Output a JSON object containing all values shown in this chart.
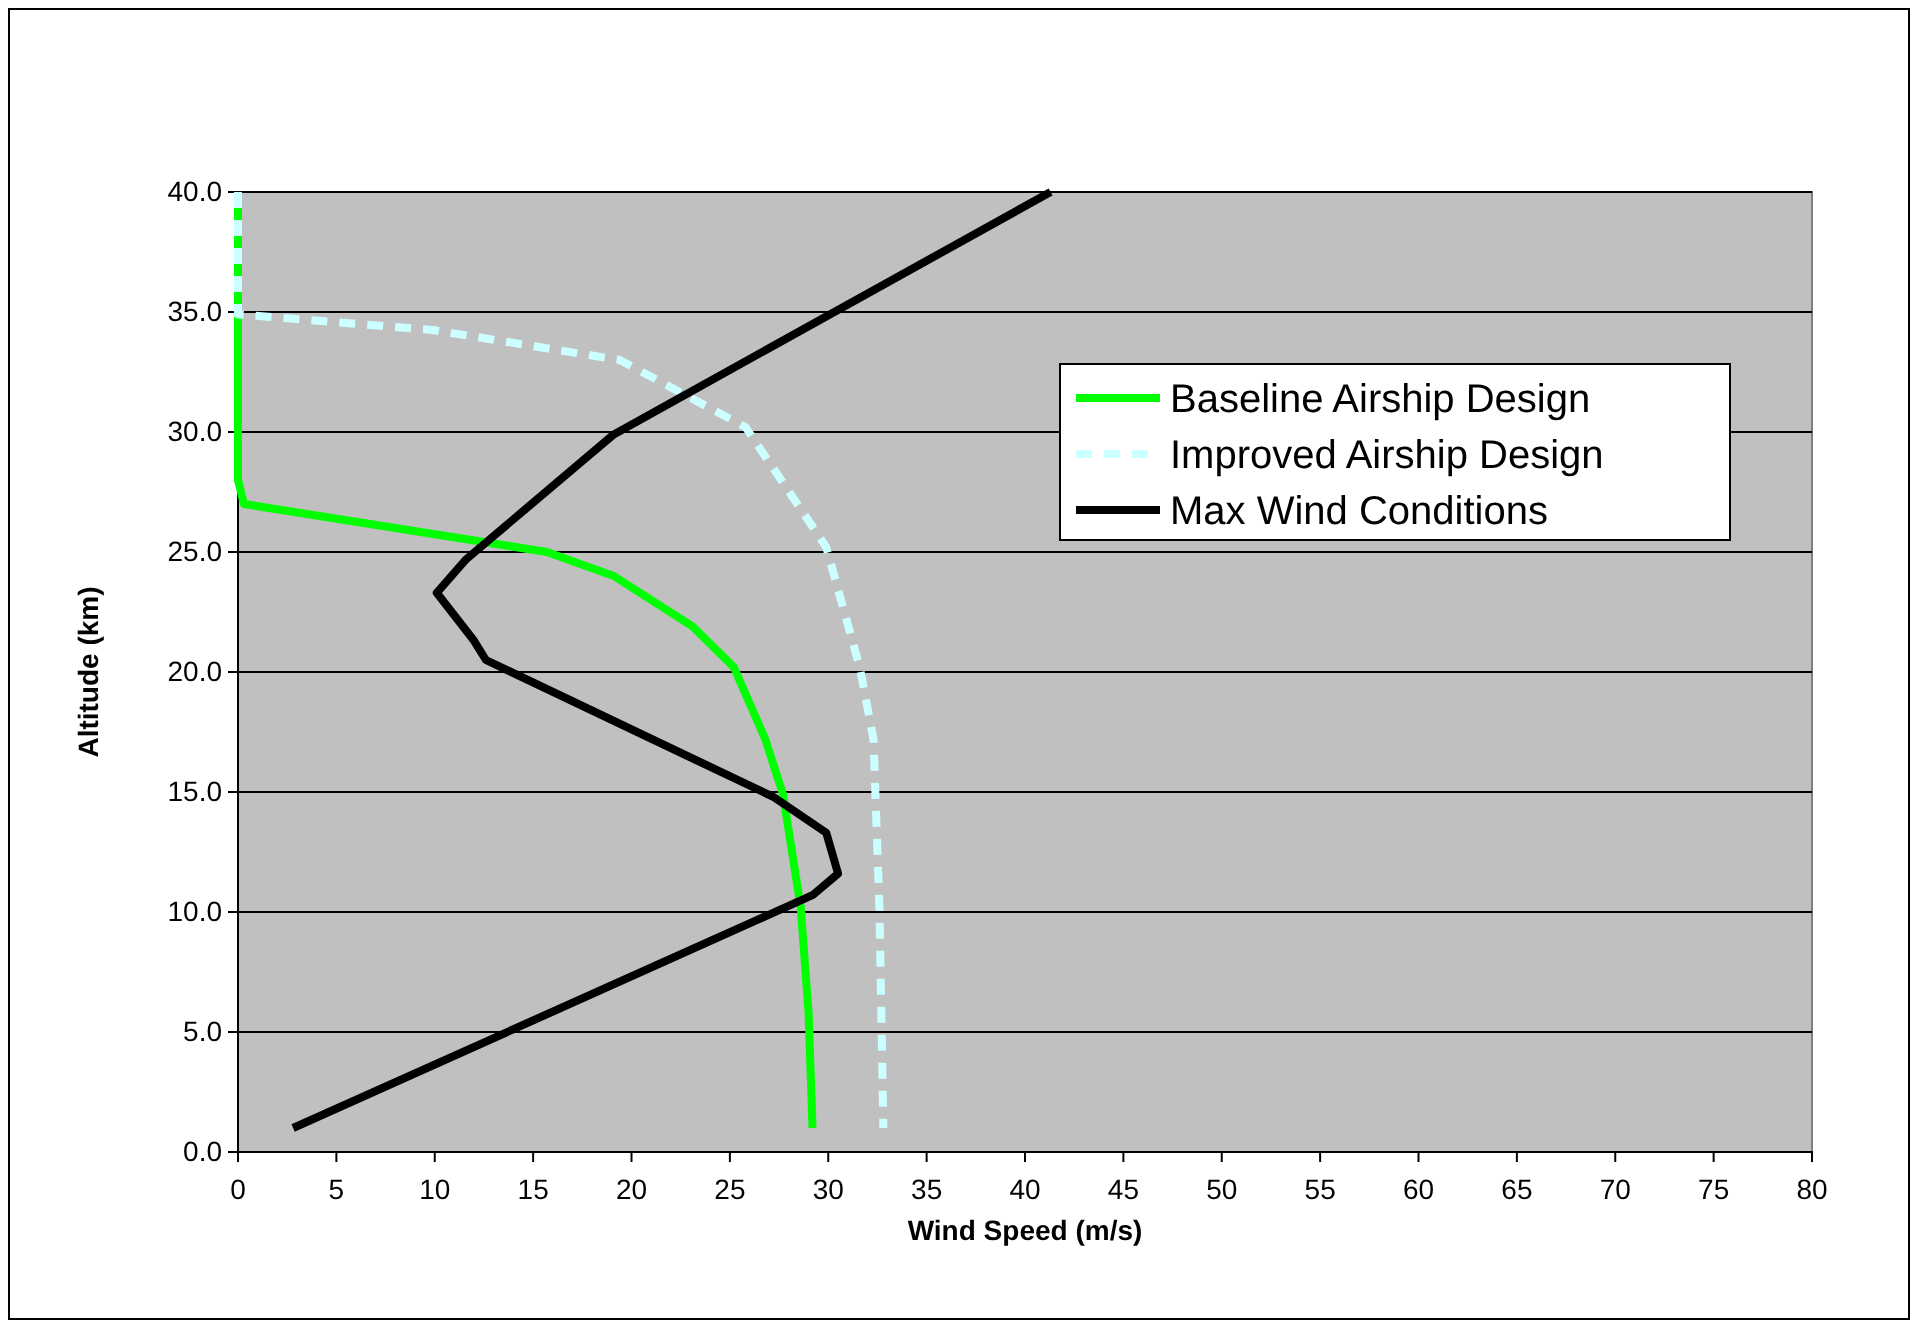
{
  "chart_data": {
    "type": "line",
    "xlabel": "Wind Speed (m/s)",
    "ylabel": "Altitude (km)",
    "xlim": [
      0,
      80
    ],
    "xticks": [
      0,
      5,
      10,
      15,
      20,
      25,
      30,
      35,
      40,
      45,
      50,
      55,
      60,
      65,
      70,
      75,
      80
    ],
    "ylim": [
      0,
      40
    ],
    "yticks": [
      {
        "value": 0,
        "label": "0.0"
      },
      {
        "value": 5,
        "label": "5.0"
      },
      {
        "value": 10,
        "label": "10.0"
      },
      {
        "value": 15,
        "label": "15.0"
      },
      {
        "value": 20,
        "label": "20.0"
      },
      {
        "value": 25,
        "label": "25.0"
      },
      {
        "value": 30,
        "label": "30.0"
      },
      {
        "value": 35,
        "label": "35.0"
      },
      {
        "value": 40,
        "label": "40.0"
      }
    ],
    "grid": "y",
    "legend": "top right",
    "marker": "none",
    "series": [
      {
        "name": "Baseline Airship Design",
        "color": "#00ff00",
        "line_style": "solid",
        "x": [
          0,
          0,
          0.3,
          15.7,
          19.1,
          23.1,
          25.2,
          26.8,
          27.7,
          28.6,
          29.0,
          29.2
        ],
        "values": [
          40,
          28,
          27.0,
          25.0,
          24.0,
          21.9,
          20.2,
          17.2,
          14.9,
          10.2,
          5.8,
          1.0
        ]
      },
      {
        "name": "Improved Airship Design",
        "color": "#ccffff",
        "line_style": "dashed",
        "x": [
          0,
          0,
          9.9,
          19.4,
          25.8,
          29.9,
          31.6,
          32.3,
          32.6,
          32.8
        ],
        "values": [
          40,
          34.9,
          34.25,
          33.0,
          30.2,
          25.2,
          20.2,
          17.2,
          10.2,
          1.0
        ]
      },
      {
        "name": "Max Wind Conditions",
        "color": "#000000",
        "line_style": "solid",
        "x": [
          41.3,
          19.1,
          11.6,
          10.1,
          12.0,
          12.6,
          27.2,
          29.9,
          30.5,
          29.2,
          2.8
        ],
        "values": [
          40,
          29.9,
          24.7,
          23.3,
          21.3,
          20.5,
          14.8,
          13.3,
          11.6,
          10.7,
          1.0
        ]
      }
    ]
  }
}
